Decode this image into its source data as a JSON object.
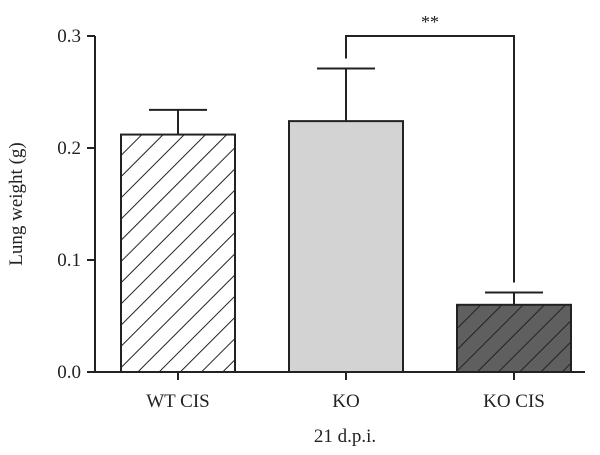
{
  "chart_data": {
    "type": "bar",
    "title": "",
    "xlabel": "21 d.p.i.",
    "ylabel": "Lung weight (g)",
    "ylim": [
      0,
      0.3
    ],
    "yticks": [
      "0.0",
      "0.1",
      "0.2",
      "0.3"
    ],
    "categories": [
      "WT CIS",
      "KO",
      "KO CIS"
    ],
    "values": [
      0.212,
      0.224,
      0.06
    ],
    "errors": [
      0.022,
      0.047,
      0.011
    ],
    "fills": [
      "hatch-white",
      "solid-light-gray",
      "hatch-dark-gray"
    ],
    "colors": {
      "light_gray": "#d3d3d3",
      "dark_gray": "#5f5f5f",
      "axis": "#222222"
    },
    "significance": {
      "from": "KO",
      "to": "KO CIS",
      "label": "**"
    },
    "grid": false,
    "legend": "none"
  }
}
